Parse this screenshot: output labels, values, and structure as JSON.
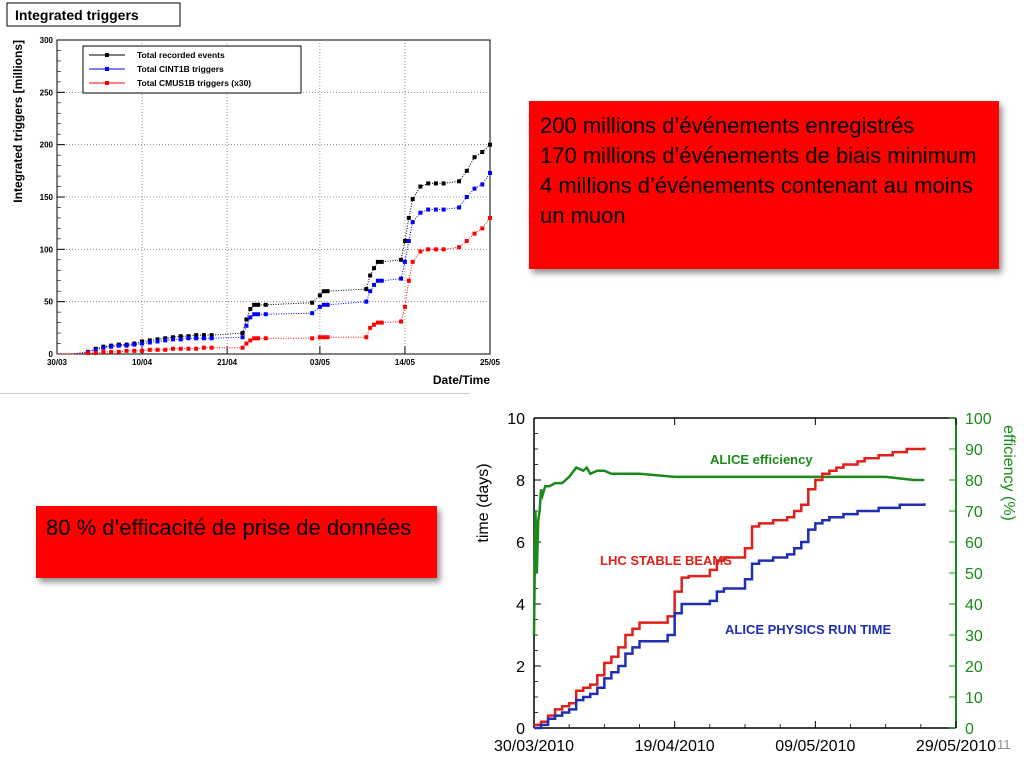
{
  "slide": {
    "page_number": "11",
    "box1_lines": [
      "200 millions d’événements enregistrés",
      "170 millions d’événements de biais minimum",
      "4 millions d’événements contenant au moins un muon"
    ],
    "box2_text": "80 % d’efficacité de prise de données",
    "box_color": "#ff0000"
  },
  "chart_data": [
    {
      "type": "line",
      "title": "Integrated triggers",
      "xlabel": "Date/Time",
      "ylabel": "Integrated triggers [millions]",
      "x_ticks": [
        "30/03",
        "10/04",
        "21/04",
        "03/05",
        "14/05",
        "25/05"
      ],
      "x_tick_days": [
        0,
        11,
        22,
        34,
        45,
        56
      ],
      "ylim": [
        0,
        300
      ],
      "y_ticks": [
        0,
        50,
        100,
        150,
        200,
        250,
        300
      ],
      "grid": true,
      "legend_position": "top-left",
      "series": [
        {
          "name": "Total recorded events",
          "color": "#000000",
          "x_days": [
            0,
            2,
            4,
            5,
            6,
            7,
            8,
            9,
            10,
            11,
            12,
            13,
            14,
            15,
            16,
            17,
            18,
            19,
            20,
            24,
            24.5,
            25,
            25.5,
            26,
            27,
            33,
            34,
            34.5,
            35,
            40,
            40.5,
            41,
            41.5,
            42,
            44.5,
            45,
            45.5,
            46,
            47,
            48,
            49,
            50,
            52,
            53,
            54,
            55,
            56
          ],
          "y": [
            0,
            0,
            2,
            5,
            7,
            8,
            9,
            9,
            10,
            12,
            13,
            14,
            15,
            16,
            17,
            17,
            18,
            18,
            18,
            20,
            33,
            43,
            47,
            47,
            47,
            49,
            56,
            60,
            60,
            62,
            75,
            82,
            88,
            88,
            90,
            108,
            130,
            148,
            160,
            163,
            163,
            163,
            165,
            175,
            188,
            193,
            200
          ]
        },
        {
          "name": "Total CINT1B triggers",
          "color": "#0000ff",
          "x_days": [
            0,
            2,
            4,
            5,
            6,
            7,
            8,
            9,
            10,
            11,
            12,
            13,
            14,
            15,
            16,
            17,
            18,
            19,
            20,
            24,
            24.5,
            25,
            25.5,
            26,
            27,
            33,
            34,
            34.5,
            35,
            40,
            40.5,
            41,
            41.5,
            42,
            44.5,
            45,
            45.5,
            46,
            47,
            48,
            49,
            50,
            52,
            53,
            54,
            55,
            56
          ],
          "y": [
            0,
            0,
            2,
            4,
            6,
            7,
            8,
            8,
            9,
            10,
            11,
            12,
            13,
            14,
            14,
            15,
            15,
            15,
            15,
            16,
            27,
            35,
            38,
            38,
            38,
            39,
            45,
            47,
            47,
            50,
            60,
            66,
            70,
            70,
            72,
            88,
            108,
            126,
            135,
            138,
            138,
            138,
            140,
            150,
            158,
            162,
            173
          ]
        },
        {
          "name": "Total CMUS1B triggers (x30)",
          "color": "#ff0000",
          "x_days": [
            0,
            2,
            4,
            5,
            6,
            7,
            8,
            9,
            10,
            11,
            12,
            13,
            14,
            15,
            16,
            17,
            18,
            19,
            20,
            24,
            24.5,
            25,
            25.5,
            26,
            27,
            33,
            34,
            34.5,
            35,
            40,
            40.5,
            41,
            41.5,
            42,
            44.5,
            45,
            45.5,
            46,
            47,
            48,
            49,
            50,
            52,
            53,
            54,
            55,
            56
          ],
          "y": [
            0,
            0,
            1,
            1,
            2,
            2,
            2,
            3,
            3,
            3,
            4,
            4,
            4,
            5,
            5,
            5,
            5,
            6,
            6,
            6,
            10,
            13,
            15,
            15,
            15,
            15,
            16,
            16,
            16,
            16,
            25,
            28,
            30,
            30,
            31,
            45,
            70,
            88,
            98,
            100,
            100,
            100,
            102,
            108,
            115,
            120,
            130
          ]
        }
      ]
    },
    {
      "type": "line",
      "xlabel": "",
      "ylabel": "time (days)",
      "y2label": "efficiency (%)",
      "x_ticks": [
        "30/03/2010",
        "19/04/2010",
        "09/05/2010",
        "29/05/2010"
      ],
      "x_tick_days": [
        0,
        20,
        40,
        60
      ],
      "ylim": [
        0,
        10
      ],
      "y_ticks": [
        0,
        2,
        4,
        6,
        8,
        10
      ],
      "y2lim": [
        0,
        100
      ],
      "y2_ticks": [
        0,
        10,
        20,
        30,
        40,
        50,
        60,
        70,
        80,
        90,
        100
      ],
      "grid": false,
      "series": [
        {
          "name": "ALICE efficiency",
          "axis": "right",
          "color": "#1a8a1a",
          "x_days": [
            0,
            0.2,
            0.4,
            0.6,
            0.8,
            1,
            1.2,
            1.6,
            2.2,
            3,
            4,
            5,
            6,
            7,
            7.5,
            8,
            9,
            10,
            11,
            12,
            15,
            20,
            25,
            30,
            35,
            40,
            45,
            50,
            54,
            55.5
          ],
          "y": [
            30,
            70,
            50,
            67,
            70,
            77,
            75,
            78,
            78,
            79,
            79,
            81,
            84,
            83,
            84,
            82,
            83,
            83,
            82,
            82,
            82,
            81,
            81,
            81,
            81,
            81,
            81,
            81,
            80,
            80
          ]
        },
        {
          "name": "LHC STABLE BEAMS",
          "axis": "left",
          "color": "#e0201a",
          "x_days": [
            0,
            1,
            2,
            3,
            4,
            5,
            6,
            7,
            8,
            9,
            10,
            11,
            12,
            13,
            14,
            15,
            16,
            17,
            18,
            19,
            20,
            21,
            22,
            23,
            24,
            25,
            26,
            27,
            28,
            29,
            30,
            31,
            32,
            33,
            34,
            35,
            36,
            37,
            38,
            39,
            40,
            41,
            42,
            43,
            44,
            45,
            46,
            47,
            48,
            49,
            50,
            51,
            52,
            53,
            54,
            55,
            55.5
          ],
          "y": [
            0.1,
            0.2,
            0.4,
            0.6,
            0.7,
            0.8,
            1.2,
            1.3,
            1.4,
            1.7,
            2.1,
            2.3,
            2.6,
            3.0,
            3.2,
            3.4,
            3.4,
            3.4,
            3.4,
            3.6,
            4.4,
            4.85,
            4.9,
            4.9,
            4.9,
            5.1,
            5.4,
            5.5,
            5.5,
            5.5,
            5.8,
            6.5,
            6.6,
            6.6,
            6.7,
            6.7,
            6.8,
            7.0,
            7.2,
            7.7,
            8.0,
            8.2,
            8.3,
            8.4,
            8.5,
            8.5,
            8.6,
            8.7,
            8.7,
            8.8,
            8.8,
            8.9,
            8.9,
            9.0,
            9.0,
            9.0,
            9.05
          ]
        },
        {
          "name": "ALICE PHYSICS RUN TIME",
          "axis": "left",
          "color": "#1f2fb5",
          "x_days": [
            0,
            1,
            2,
            3,
            4,
            5,
            6,
            7,
            8,
            9,
            10,
            11,
            12,
            13,
            14,
            15,
            16,
            17,
            18,
            19,
            20,
            21,
            22,
            23,
            24,
            25,
            26,
            27,
            28,
            29,
            30,
            31,
            32,
            33,
            34,
            35,
            36,
            37,
            38,
            39,
            40,
            41,
            42,
            43,
            44,
            45,
            46,
            47,
            48,
            49,
            50,
            51,
            52,
            53,
            54,
            55,
            55.5
          ],
          "y": [
            0,
            0.1,
            0.3,
            0.4,
            0.5,
            0.6,
            0.9,
            1.0,
            1.1,
            1.3,
            1.6,
            1.8,
            2.0,
            2.4,
            2.6,
            2.8,
            2.8,
            2.8,
            2.8,
            3.0,
            3.7,
            4.0,
            4.0,
            4.0,
            4.0,
            4.1,
            4.4,
            4.5,
            4.5,
            4.5,
            4.8,
            5.3,
            5.4,
            5.4,
            5.5,
            5.5,
            5.6,
            5.8,
            6.0,
            6.4,
            6.6,
            6.7,
            6.8,
            6.8,
            6.9,
            6.9,
            7.0,
            7.0,
            7.0,
            7.1,
            7.1,
            7.1,
            7.2,
            7.2,
            7.2,
            7.2,
            7.25
          ]
        }
      ]
    }
  ]
}
